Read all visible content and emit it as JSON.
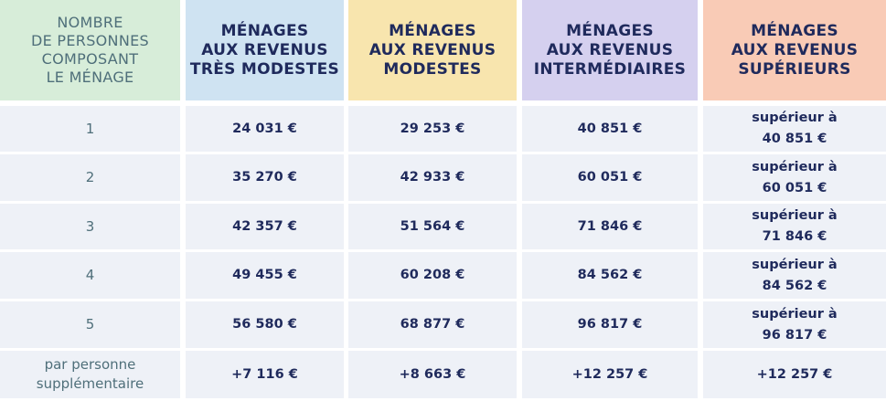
{
  "header": {
    "columns": [
      {
        "lines": [
          "NOMBRE",
          "DE PERSONNES",
          "COMPOSANT",
          "LE MÉNAGE"
        ]
      },
      {
        "lines": [
          "MÉNAGES",
          "AUX REVENUS",
          "TRÈS MODESTES"
        ]
      },
      {
        "lines": [
          "MÉNAGES",
          "AUX REVENUS",
          "MODESTES"
        ]
      },
      {
        "lines": [
          "MÉNAGES",
          "AUX REVENUS",
          "INTERMÉDIAIRES"
        ]
      },
      {
        "lines": [
          "MÉNAGES",
          "AUX REVENUS",
          "SUPÉRIEURS"
        ]
      }
    ]
  },
  "table": {
    "rows": [
      [
        "1",
        "24 031 €",
        "29 253 €",
        "40 851 €",
        "supérieur à 40 851 €"
      ],
      [
        "2",
        "35 270 €",
        "42 933 €",
        "60 051 €",
        "supérieur à 60 051 €"
      ],
      [
        "3",
        "42 357 €",
        "51 564 €",
        "71 846 €",
        "supérieur à 71 846 €"
      ],
      [
        "4",
        "49 455 €",
        "60 208 €",
        "84 562 €",
        "supérieur à 84 562 €"
      ],
      [
        "5",
        "56 580 €",
        "68 877 €",
        "96 817 €",
        "supérieur à 96 817 €"
      ],
      [
        "par personne supplémentaire",
        "+7 116 €",
        "+8 663 €",
        "+12 257 €",
        "+12 257 €"
      ]
    ]
  }
}
